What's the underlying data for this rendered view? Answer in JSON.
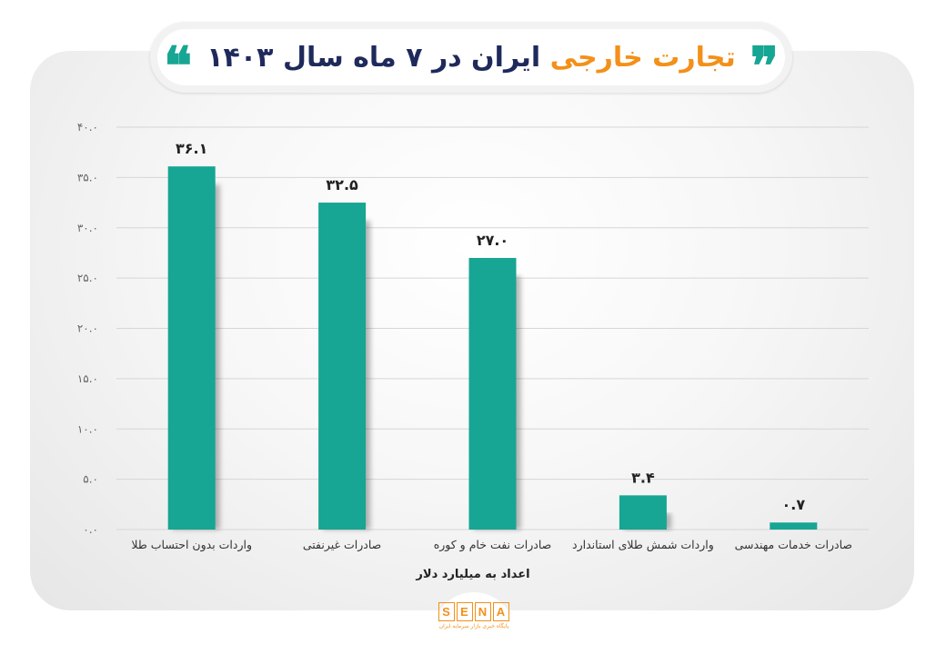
{
  "header": {
    "title_main": "ایران در ۷ ماه سال ۱۴۰۳",
    "title_accent": "تجارت خارجی",
    "quote_open": "❞",
    "quote_close": "❝"
  },
  "chart_data": {
    "type": "bar",
    "categories": [
      "واردات بدون احتساب طلا",
      "صادرات غیرنفتی",
      "صادرات نفت خام و کوره",
      "واردات شمش طلای استاندارد",
      "صادرات خدمات مهندسی"
    ],
    "values": [
      36.1,
      32.5,
      27.0,
      3.4,
      0.7
    ],
    "value_labels": [
      "۳۶.۱",
      "۳۲.۵",
      "۲۷.۰",
      "۳.۴",
      "۰.۷"
    ],
    "yticks": [
      0,
      5,
      10,
      15,
      20,
      25,
      30,
      35,
      40
    ],
    "ytick_labels": [
      "۰.۰",
      "۵.۰",
      "۱۰.۰",
      "۱۵.۰",
      "۲۰.۰",
      "۲۵.۰",
      "۳۰.۰",
      "۳۵.۰",
      "۴۰.۰"
    ],
    "xlabel": "اعداد به میلیارد دلار",
    "ylabel": "",
    "ylim": [
      0,
      40
    ],
    "grid": true,
    "bar_color": "#17a594"
  },
  "logo": {
    "letters": [
      "S",
      "E",
      "N",
      "A"
    ],
    "subtitle": "پایگاه خبری بازار سرمایه ایران"
  }
}
